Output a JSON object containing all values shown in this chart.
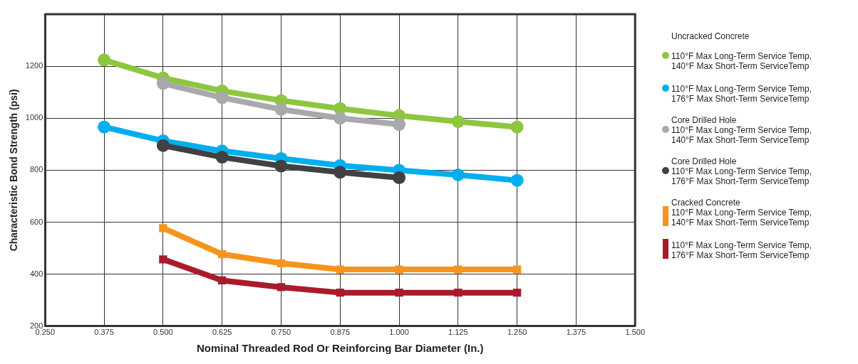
{
  "chart_data": {
    "type": "line",
    "xlabel": "Nominal Threaded Rod Or Reinforcing Bar Diameter (In.)",
    "ylabel": "Characteristic Bond Strength (psi)",
    "xlim": [
      0.25,
      1.5
    ],
    "xticks": [
      {
        "value": 0.25,
        "label": "0.250"
      },
      {
        "value": 0.375,
        "label": "0.375"
      },
      {
        "value": 0.5,
        "label": "0.500"
      },
      {
        "value": 0.625,
        "label": "0.625"
      },
      {
        "value": 0.75,
        "label": "0.750"
      },
      {
        "value": 0.875,
        "label": "0.875"
      },
      {
        "value": 1,
        "label": "1.000"
      },
      {
        "value": 1.125,
        "label": "1.125"
      },
      {
        "value": 1.25,
        "label": "1.250"
      },
      {
        "value": 1.375,
        "label": "1.375"
      },
      {
        "value": 1.5,
        "label": "1.500"
      }
    ],
    "ylim": [
      200,
      1400
    ],
    "yticks": [
      200,
      400,
      600,
      800,
      1000,
      1200,
      {
        "value": 1400,
        "label": null
      }
    ],
    "grid": true,
    "legend": "right",
    "line_style": "solid",
    "series": [
      {
        "name": "Uncracked Concrete\n\n110°F Max Long-Term Service Temp,\n140°F Max Short-Term ServiceTemp",
        "color": "#8dc63f",
        "marker": "circle",
        "x": [
          0.375,
          0.5,
          0.625,
          0.75,
          0.875,
          1,
          1.125,
          1.25
        ],
        "values": [
          1224,
          1155,
          1105,
          1068,
          1037,
          1010,
          987,
          966
        ]
      },
      {
        "name": "110°F Max Long-Term Service Temp,\n176°F Max Short-Term ServiceTemp",
        "color": "#00aeef",
        "marker": "circle",
        "x": [
          0.375,
          0.5,
          0.625,
          0.75,
          0.875,
          1,
          1.125,
          1.25
        ],
        "values": [
          966,
          913,
          874,
          845,
          818,
          800,
          782,
          761
        ]
      },
      {
        "name": "Core Drilled Hole\n110°F Max Long-Term Service Temp,\n140°F Max Short-Term ServiceTemp",
        "color": "#a7a9ac",
        "marker": "circle",
        "x": [
          0.5,
          0.625,
          0.75,
          0.875,
          1
        ],
        "values": [
          1134,
          1079,
          1034,
          1000,
          976
        ]
      },
      {
        "name": "Core Drilled Hole\n110°F Max Long-Term Service Temp,\n176°F Max Short-Term ServiceTemp",
        "color": "#414042",
        "marker": "circle",
        "x": [
          0.5,
          0.625,
          0.75,
          0.875,
          1
        ],
        "values": [
          895,
          850,
          816,
          792,
          771
        ]
      },
      {
        "name": "Cracked Concrete\n110°F Max Long-Term Service Temp,\n140°F Max Short-Term ServiceTemp",
        "color": "#f7941d",
        "marker": "square",
        "x": [
          0.5,
          0.625,
          0.75,
          0.875,
          1,
          1.125,
          1.25
        ],
        "values": [
          577,
          477,
          442,
          418,
          418,
          418,
          418
        ]
      },
      {
        "name": "110°F Max Long-Term Service Temp,\n176°F Max Short-Term ServiceTemp",
        "color": "#a91b2b",
        "marker": "square",
        "x": [
          0.5,
          0.625,
          0.75,
          0.875,
          1,
          1.125,
          1.25
        ],
        "values": [
          457,
          376,
          350,
          329,
          329,
          329,
          329
        ]
      }
    ]
  }
}
